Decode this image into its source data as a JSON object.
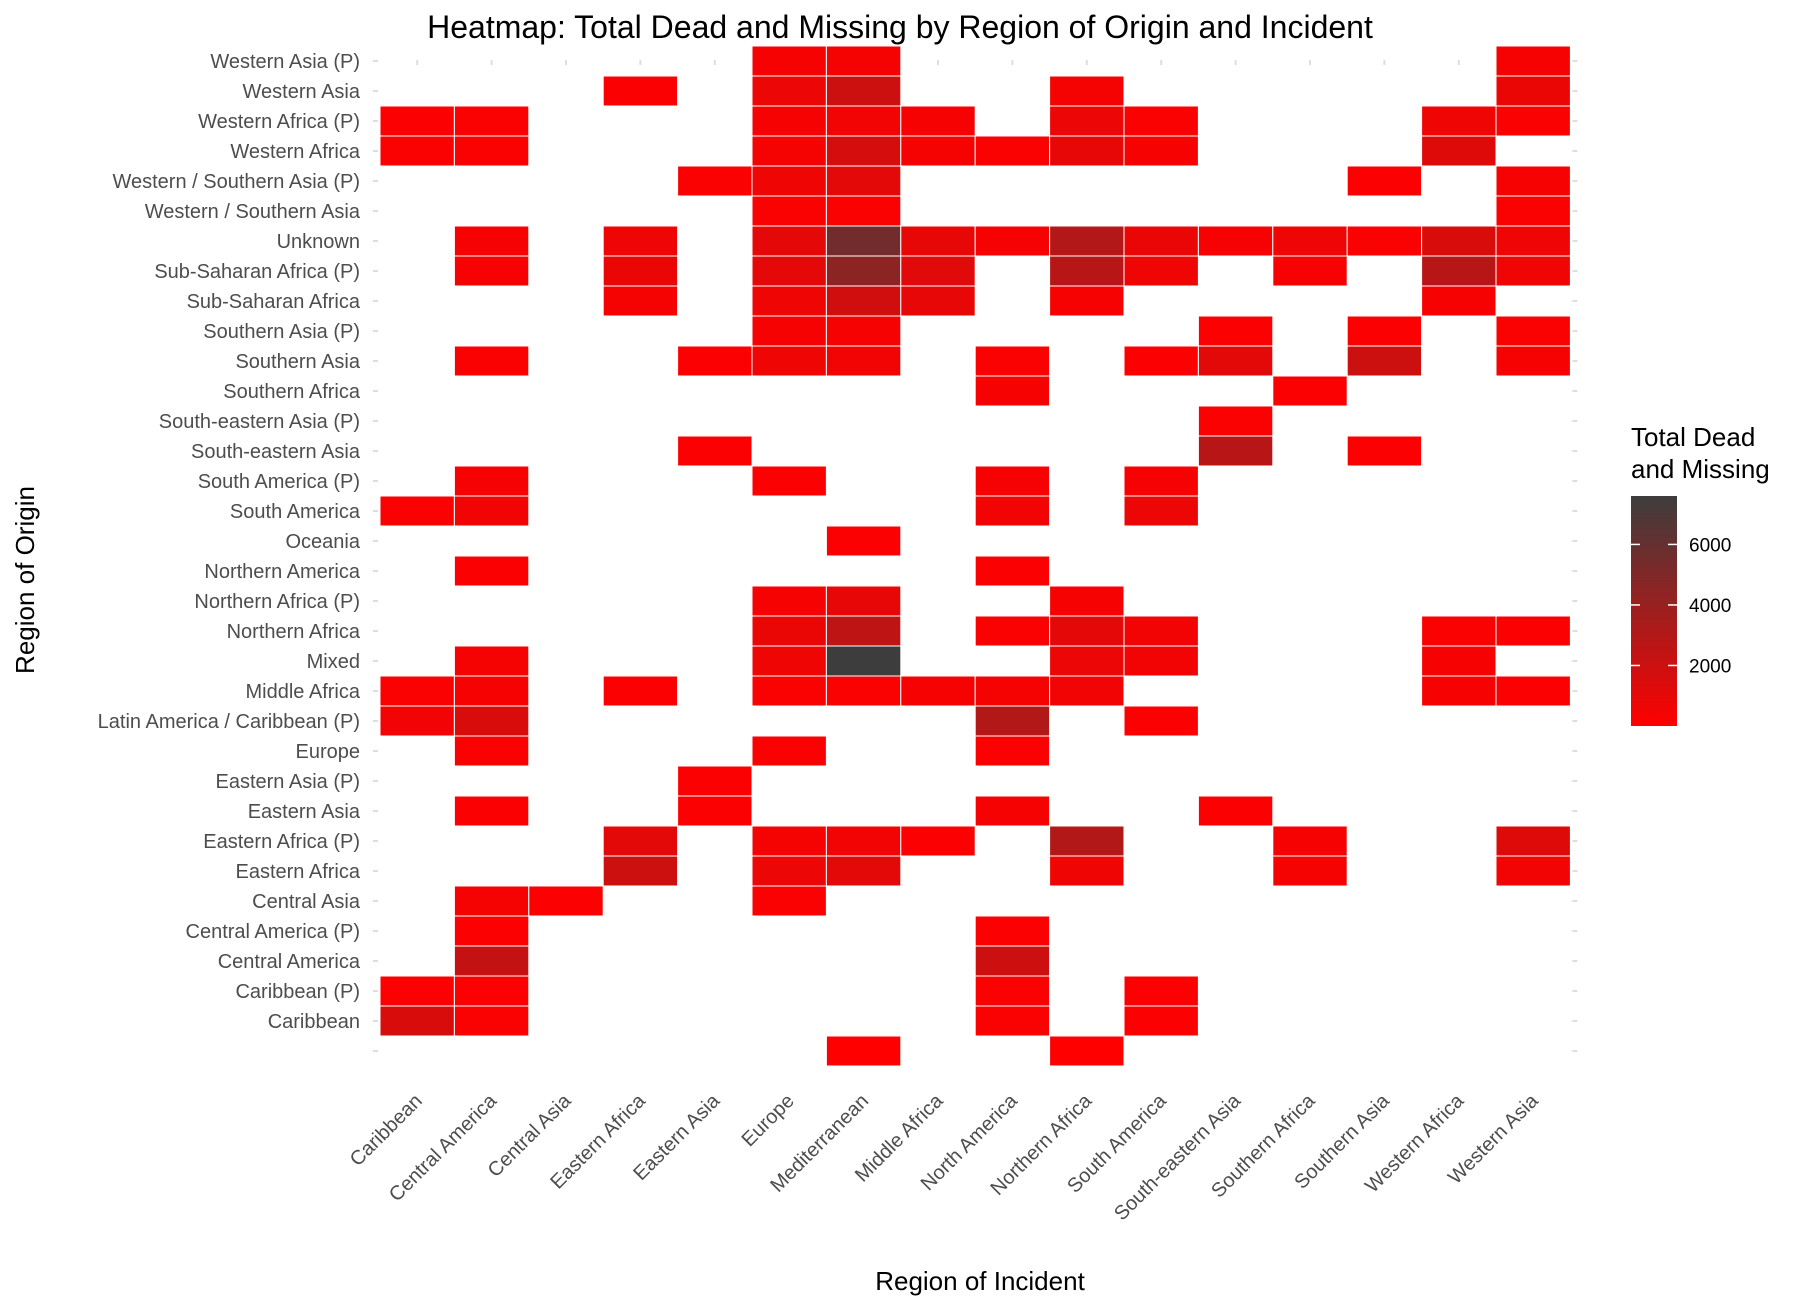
{
  "chart_data": {
    "type": "heatmap",
    "title": "Heatmap: Total Dead and Missing by Region of Origin and Incident",
    "xlabel": "Region of Incident",
    "ylabel": "Region of Origin",
    "x_categories": [
      "Caribbean",
      "Central America",
      "Central Asia",
      "Eastern Africa",
      "Eastern Asia",
      "Europe",
      "Mediterranean",
      "Middle Africa",
      "North America",
      "Northern Africa",
      "South America",
      "South-eastern Asia",
      "Southern Africa",
      "Southern Asia",
      "Western Africa",
      "Western Asia"
    ],
    "y_categories": [
      "",
      "Caribbean",
      "Caribbean (P)",
      "Central America",
      "Central America (P)",
      "Central Asia",
      "Eastern Africa",
      "Eastern Africa (P)",
      "Eastern Asia",
      "Eastern Asia (P)",
      "Europe",
      "Latin America / Caribbean (P)",
      "Middle Africa",
      "Mixed",
      "Northern Africa",
      "Northern Africa (P)",
      "Northern America",
      "Oceania",
      "South America",
      "South America (P)",
      "South-eastern Asia",
      "South-eastern Asia (P)",
      "Southern Africa",
      "Southern Asia",
      "Southern Asia (P)",
      "Sub-Saharan Africa",
      "Sub-Saharan Africa (P)",
      "Unknown",
      "Western / Southern Asia",
      "Western / Southern Asia (P)",
      "Western Africa",
      "Western Africa (P)",
      "Western Asia",
      "Western Asia (P)"
    ],
    "legend": {
      "title_line1": "Total Dead",
      "title_line2": "and Missing",
      "ticks": [
        2000,
        4000,
        6000
      ],
      "min": 0,
      "max": 7600,
      "low_color": "#ff0000",
      "high_color": "#3d3d3d",
      "position": "right"
    },
    "grid": false,
    "cells": [
      {
        "x": "Mediterranean",
        "y": "",
        "value": 30
      },
      {
        "x": "Northern Africa",
        "y": "",
        "value": 30
      },
      {
        "x": "Caribbean",
        "y": "Caribbean",
        "value": 1500
      },
      {
        "x": "Central America",
        "y": "Caribbean",
        "value": 200
      },
      {
        "x": "North America",
        "y": "Caribbean",
        "value": 200
      },
      {
        "x": "South America",
        "y": "Caribbean",
        "value": 100
      },
      {
        "x": "Caribbean",
        "y": "Caribbean (P)",
        "value": 100
      },
      {
        "x": "Central America",
        "y": "Caribbean (P)",
        "value": 100
      },
      {
        "x": "North America",
        "y": "Caribbean (P)",
        "value": 200
      },
      {
        "x": "South America",
        "y": "Caribbean (P)",
        "value": 100
      },
      {
        "x": "Central America",
        "y": "Central America",
        "value": 2300
      },
      {
        "x": "North America",
        "y": "Central America",
        "value": 2000
      },
      {
        "x": "Central America",
        "y": "Central America (P)",
        "value": 100
      },
      {
        "x": "North America",
        "y": "Central America (P)",
        "value": 150
      },
      {
        "x": "Central America",
        "y": "Central Asia",
        "value": 400
      },
      {
        "x": "Central Asia",
        "y": "Central Asia",
        "value": 100
      },
      {
        "x": "Europe",
        "y": "Central Asia",
        "value": 200
      },
      {
        "x": "Eastern Africa",
        "y": "Eastern Africa",
        "value": 2000
      },
      {
        "x": "Europe",
        "y": "Eastern Africa",
        "value": 700
      },
      {
        "x": "Mediterranean",
        "y": "Eastern Africa",
        "value": 1100
      },
      {
        "x": "Northern Africa",
        "y": "Eastern Africa",
        "value": 600
      },
      {
        "x": "Southern Africa",
        "y": "Eastern Africa",
        "value": 400
      },
      {
        "x": "Western Asia",
        "y": "Eastern Africa",
        "value": 500
      },
      {
        "x": "Eastern Africa",
        "y": "Eastern Africa (P)",
        "value": 1100
      },
      {
        "x": "Europe",
        "y": "Eastern Africa (P)",
        "value": 400
      },
      {
        "x": "Mediterranean",
        "y": "Eastern Africa (P)",
        "value": 500
      },
      {
        "x": "Middle Africa",
        "y": "Eastern Africa (P)",
        "value": 100
      },
      {
        "x": "Northern Africa",
        "y": "Eastern Africa (P)",
        "value": 3000
      },
      {
        "x": "Southern Africa",
        "y": "Eastern Africa (P)",
        "value": 300
      },
      {
        "x": "Western Asia",
        "y": "Eastern Africa (P)",
        "value": 1300
      },
      {
        "x": "Central America",
        "y": "Eastern Asia",
        "value": 100
      },
      {
        "x": "Eastern Asia",
        "y": "Eastern Asia",
        "value": 100
      },
      {
        "x": "North America",
        "y": "Eastern Asia",
        "value": 300
      },
      {
        "x": "South-eastern Asia",
        "y": "Eastern Asia",
        "value": 100
      },
      {
        "x": "Eastern Asia",
        "y": "Eastern Asia (P)",
        "value": 100
      },
      {
        "x": "Central America",
        "y": "Europe",
        "value": 200
      },
      {
        "x": "Europe",
        "y": "Europe",
        "value": 200
      },
      {
        "x": "North America",
        "y": "Europe",
        "value": 100
      },
      {
        "x": "Caribbean",
        "y": "Latin America / Caribbean (P)",
        "value": 500
      },
      {
        "x": "Central America",
        "y": "Latin America / Caribbean (P)",
        "value": 1500
      },
      {
        "x": "North America",
        "y": "Latin America / Caribbean (P)",
        "value": 3000
      },
      {
        "x": "South America",
        "y": "Latin America / Caribbean (P)",
        "value": 100
      },
      {
        "x": "Caribbean",
        "y": "Middle Africa",
        "value": 200
      },
      {
        "x": "Central America",
        "y": "Middle Africa",
        "value": 300
      },
      {
        "x": "Eastern Africa",
        "y": "Middle Africa",
        "value": 100
      },
      {
        "x": "Europe",
        "y": "Middle Africa",
        "value": 200
      },
      {
        "x": "Mediterranean",
        "y": "Middle Africa",
        "value": 200
      },
      {
        "x": "Middle Africa",
        "y": "Middle Africa",
        "value": 300
      },
      {
        "x": "North America",
        "y": "Middle Africa",
        "value": 400
      },
      {
        "x": "Northern Africa",
        "y": "Middle Africa",
        "value": 500
      },
      {
        "x": "Western Africa",
        "y": "Middle Africa",
        "value": 300
      },
      {
        "x": "Western Asia",
        "y": "Middle Africa",
        "value": 100
      },
      {
        "x": "Central America",
        "y": "Mixed",
        "value": 400
      },
      {
        "x": "Europe",
        "y": "Mixed",
        "value": 600
      },
      {
        "x": "Mediterranean",
        "y": "Mixed",
        "value": 7600
      },
      {
        "x": "Northern Africa",
        "y": "Mixed",
        "value": 700
      },
      {
        "x": "South America",
        "y": "Mixed",
        "value": 500
      },
      {
        "x": "Western Africa",
        "y": "Mixed",
        "value": 300
      },
      {
        "x": "Europe",
        "y": "Northern Africa",
        "value": 800
      },
      {
        "x": "Mediterranean",
        "y": "Northern Africa",
        "value": 2500
      },
      {
        "x": "North America",
        "y": "Northern Africa",
        "value": 200
      },
      {
        "x": "Northern Africa",
        "y": "Northern Africa",
        "value": 1000
      },
      {
        "x": "South America",
        "y": "Northern Africa",
        "value": 500
      },
      {
        "x": "Western Africa",
        "y": "Northern Africa",
        "value": 200
      },
      {
        "x": "Western Asia",
        "y": "Northern Africa",
        "value": 100
      },
      {
        "x": "Europe",
        "y": "Northern Africa (P)",
        "value": 300
      },
      {
        "x": "Mediterranean",
        "y": "Northern Africa (P)",
        "value": 900
      },
      {
        "x": "Northern Africa",
        "y": "Northern Africa (P)",
        "value": 300
      },
      {
        "x": "Central America",
        "y": "Northern America",
        "value": 100
      },
      {
        "x": "North America",
        "y": "Northern America",
        "value": 100
      },
      {
        "x": "Mediterranean",
        "y": "Oceania",
        "value": 100
      },
      {
        "x": "Caribbean",
        "y": "South America",
        "value": 200
      },
      {
        "x": "Central America",
        "y": "South America",
        "value": 500
      },
      {
        "x": "North America",
        "y": "South America",
        "value": 500
      },
      {
        "x": "South America",
        "y": "South America",
        "value": 700
      },
      {
        "x": "Central America",
        "y": "South America (P)",
        "value": 300
      },
      {
        "x": "Europe",
        "y": "South America (P)",
        "value": 100
      },
      {
        "x": "North America",
        "y": "South America (P)",
        "value": 300
      },
      {
        "x": "South America",
        "y": "South America (P)",
        "value": 300
      },
      {
        "x": "Eastern Asia",
        "y": "South-eastern Asia",
        "value": 100
      },
      {
        "x": "South-eastern Asia",
        "y": "South-eastern Asia",
        "value": 2800
      },
      {
        "x": "Southern Asia",
        "y": "South-eastern Asia",
        "value": 100
      },
      {
        "x": "South-eastern Asia",
        "y": "South-eastern Asia (P)",
        "value": 200
      },
      {
        "x": "North America",
        "y": "Southern Africa",
        "value": 300
      },
      {
        "x": "Southern Africa",
        "y": "Southern Africa",
        "value": 100
      },
      {
        "x": "Central America",
        "y": "Southern Asia",
        "value": 200
      },
      {
        "x": "Eastern Asia",
        "y": "Southern Asia",
        "value": 100
      },
      {
        "x": "Europe",
        "y": "Southern Asia",
        "value": 600
      },
      {
        "x": "Mediterranean",
        "y": "Southern Asia",
        "value": 500
      },
      {
        "x": "North America",
        "y": "Southern Asia",
        "value": 200
      },
      {
        "x": "South America",
        "y": "Southern Asia",
        "value": 100
      },
      {
        "x": "South-eastern Asia",
        "y": "Southern Asia",
        "value": 1100
      },
      {
        "x": "Southern Asia",
        "y": "Southern Asia",
        "value": 2000
      },
      {
        "x": "Western Asia",
        "y": "Southern Asia",
        "value": 300
      },
      {
        "x": "Europe",
        "y": "Southern Asia (P)",
        "value": 300
      },
      {
        "x": "Mediterranean",
        "y": "Southern Asia (P)",
        "value": 300
      },
      {
        "x": "South-eastern Asia",
        "y": "Southern Asia (P)",
        "value": 100
      },
      {
        "x": "Southern Asia",
        "y": "Southern Asia (P)",
        "value": 100
      },
      {
        "x": "Western Asia",
        "y": "Southern Asia (P)",
        "value": 200
      },
      {
        "x": "Eastern Africa",
        "y": "Sub-Saharan Africa",
        "value": 400
      },
      {
        "x": "Europe",
        "y": "Sub-Saharan Africa",
        "value": 600
      },
      {
        "x": "Mediterranean",
        "y": "Sub-Saharan Africa",
        "value": 1800
      },
      {
        "x": "Middle Africa",
        "y": "Sub-Saharan Africa",
        "value": 900
      },
      {
        "x": "Northern Africa",
        "y": "Sub-Saharan Africa",
        "value": 300
      },
      {
        "x": "Western Africa",
        "y": "Sub-Saharan Africa",
        "value": 300
      },
      {
        "x": "Central America",
        "y": "Sub-Saharan Africa (P)",
        "value": 300
      },
      {
        "x": "Eastern Africa",
        "y": "Sub-Saharan Africa (P)",
        "value": 800
      },
      {
        "x": "Europe",
        "y": "Sub-Saharan Africa (P)",
        "value": 1000
      },
      {
        "x": "Mediterranean",
        "y": "Sub-Saharan Africa (P)",
        "value": 4500
      },
      {
        "x": "Middle Africa",
        "y": "Sub-Saharan Africa (P)",
        "value": 1200
      },
      {
        "x": "Northern Africa",
        "y": "Sub-Saharan Africa (P)",
        "value": 2800
      },
      {
        "x": "South America",
        "y": "Sub-Saharan Africa (P)",
        "value": 600
      },
      {
        "x": "Southern Africa",
        "y": "Sub-Saharan Africa (P)",
        "value": 300
      },
      {
        "x": "Western Africa",
        "y": "Sub-Saharan Africa (P)",
        "value": 2800
      },
      {
        "x": "Western Asia",
        "y": "Sub-Saharan Africa (P)",
        "value": 600
      },
      {
        "x": "Central America",
        "y": "Unknown",
        "value": 300
      },
      {
        "x": "Eastern Africa",
        "y": "Unknown",
        "value": 600
      },
      {
        "x": "Europe",
        "y": "Unknown",
        "value": 1000
      },
      {
        "x": "Mediterranean",
        "y": "Unknown",
        "value": 5500
      },
      {
        "x": "Middle Africa",
        "y": "Unknown",
        "value": 900
      },
      {
        "x": "North America",
        "y": "Unknown",
        "value": 300
      },
      {
        "x": "Northern Africa",
        "y": "Unknown",
        "value": 3000
      },
      {
        "x": "South America",
        "y": "Unknown",
        "value": 800
      },
      {
        "x": "South-eastern Asia",
        "y": "Unknown",
        "value": 300
      },
      {
        "x": "Southern Africa",
        "y": "Unknown",
        "value": 600
      },
      {
        "x": "Southern Asia",
        "y": "Unknown",
        "value": 200
      },
      {
        "x": "Western Africa",
        "y": "Unknown",
        "value": 1500
      },
      {
        "x": "Western Asia",
        "y": "Unknown",
        "value": 600
      },
      {
        "x": "Europe",
        "y": "Western / Southern Asia",
        "value": 200
      },
      {
        "x": "Mediterranean",
        "y": "Western / Southern Asia",
        "value": 200
      },
      {
        "x": "Western Asia",
        "y": "Western / Southern Asia",
        "value": 200
      },
      {
        "x": "Eastern Asia",
        "y": "Western / Southern Asia (P)",
        "value": 200
      },
      {
        "x": "Europe",
        "y": "Western / Southern Asia (P)",
        "value": 600
      },
      {
        "x": "Mediterranean",
        "y": "Western / Southern Asia (P)",
        "value": 1100
      },
      {
        "x": "Southern Asia",
        "y": "Western / Southern Asia (P)",
        "value": 100
      },
      {
        "x": "Western Asia",
        "y": "Western / Southern Asia (P)",
        "value": 300
      },
      {
        "x": "Caribbean",
        "y": "Western Africa",
        "value": 200
      },
      {
        "x": "Central America",
        "y": "Western Africa",
        "value": 200
      },
      {
        "x": "Europe",
        "y": "Western Africa",
        "value": 400
      },
      {
        "x": "Mediterranean",
        "y": "Western Africa",
        "value": 1600
      },
      {
        "x": "Middle Africa",
        "y": "Western Africa",
        "value": 400
      },
      {
        "x": "North America",
        "y": "Western Africa",
        "value": 200
      },
      {
        "x": "Northern Africa",
        "y": "Western Africa",
        "value": 900
      },
      {
        "x": "South America",
        "y": "Western Africa",
        "value": 300
      },
      {
        "x": "Western Africa",
        "y": "Western Africa",
        "value": 1300
      },
      {
        "x": "Caribbean",
        "y": "Western Africa (P)",
        "value": 100
      },
      {
        "x": "Central America",
        "y": "Western Africa (P)",
        "value": 200
      },
      {
        "x": "Europe",
        "y": "Western Africa (P)",
        "value": 300
      },
      {
        "x": "Mediterranean",
        "y": "Western Africa (P)",
        "value": 500
      },
      {
        "x": "Middle Africa",
        "y": "Western Africa (P)",
        "value": 300
      },
      {
        "x": "Northern Africa",
        "y": "Western Africa (P)",
        "value": 700
      },
      {
        "x": "South America",
        "y": "Western Africa (P)",
        "value": 200
      },
      {
        "x": "Western Africa",
        "y": "Western Africa (P)",
        "value": 600
      },
      {
        "x": "Western Asia",
        "y": "Western Africa (P)",
        "value": 200
      },
      {
        "x": "Eastern Africa",
        "y": "Western Asia",
        "value": 100
      },
      {
        "x": "Europe",
        "y": "Western Asia",
        "value": 700
      },
      {
        "x": "Mediterranean",
        "y": "Western Asia",
        "value": 2000
      },
      {
        "x": "Northern Africa",
        "y": "Western Asia",
        "value": 400
      },
      {
        "x": "Western Asia",
        "y": "Western Asia",
        "value": 800
      },
      {
        "x": "Europe",
        "y": "Western Asia (P)",
        "value": 300
      },
      {
        "x": "Mediterranean",
        "y": "Western Asia (P)",
        "value": 400
      },
      {
        "x": "Western Asia",
        "y": "Western Asia (P)",
        "value": 300
      }
    ]
  }
}
